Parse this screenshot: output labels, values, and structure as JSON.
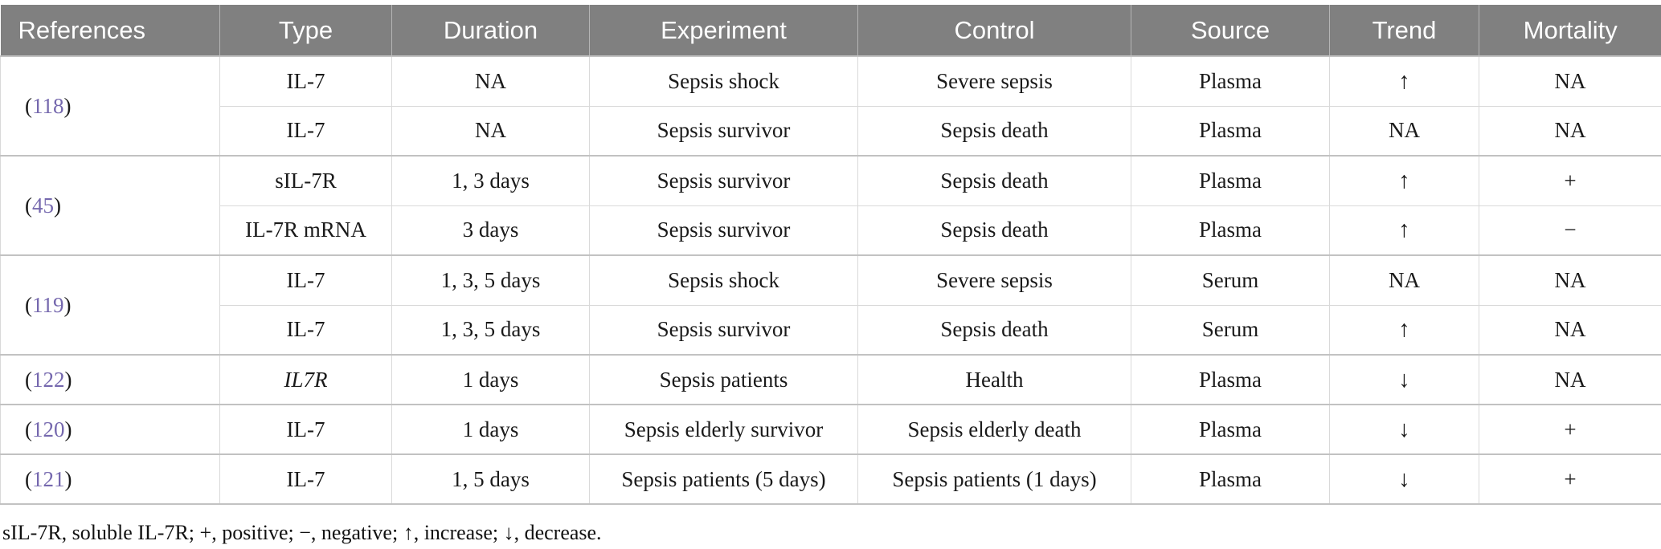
{
  "table": {
    "columns": [
      "References",
      "Type",
      "Duration",
      "Experiment",
      "Control",
      "Source",
      "Trend",
      "Mortality"
    ],
    "ref_paren_open": "(",
    "ref_paren_close": ")",
    "groups": [
      {
        "reference": "118",
        "rows": [
          {
            "type": "IL-7",
            "type_italic": false,
            "duration": "NA",
            "experiment": "Sepsis shock",
            "control": "Severe sepsis",
            "source": "Plasma",
            "trend": "↑",
            "mortality": "NA"
          },
          {
            "type": "IL-7",
            "type_italic": false,
            "duration": "NA",
            "experiment": "Sepsis survivor",
            "control": "Sepsis death",
            "source": "Plasma",
            "trend": "NA",
            "mortality": "NA"
          }
        ]
      },
      {
        "reference": "45",
        "rows": [
          {
            "type": "sIL-7R",
            "type_italic": false,
            "duration": "1, 3 days",
            "experiment": "Sepsis survivor",
            "control": "Sepsis death",
            "source": "Plasma",
            "trend": "↑",
            "mortality": "+"
          },
          {
            "type": "IL-7R mRNA",
            "type_italic": false,
            "duration": "3 days",
            "experiment": "Sepsis survivor",
            "control": "Sepsis death",
            "source": "Plasma",
            "trend": "↑",
            "mortality": "−"
          }
        ]
      },
      {
        "reference": "119",
        "rows": [
          {
            "type": "IL-7",
            "type_italic": false,
            "duration": "1, 3, 5 days",
            "experiment": "Sepsis shock",
            "control": "Severe sepsis",
            "source": "Serum",
            "trend": "NA",
            "mortality": "NA"
          },
          {
            "type": "IL-7",
            "type_italic": false,
            "duration": "1, 3, 5 days",
            "experiment": "Sepsis survivor",
            "control": "Sepsis death",
            "source": "Serum",
            "trend": "↑",
            "mortality": "NA"
          }
        ]
      },
      {
        "reference": "122",
        "rows": [
          {
            "type": "IL7R",
            "type_italic": true,
            "duration": "1 days",
            "experiment": "Sepsis patients",
            "control": "Health",
            "source": "Plasma",
            "trend": "↓",
            "mortality": "NA"
          }
        ]
      },
      {
        "reference": "120",
        "rows": [
          {
            "type": "IL-7",
            "type_italic": false,
            "duration": "1 days",
            "experiment": "Sepsis elderly survivor",
            "control": "Sepsis elderly death",
            "source": "Plasma",
            "trend": "↓",
            "mortality": "+"
          }
        ]
      },
      {
        "reference": "121",
        "rows": [
          {
            "type": "IL-7",
            "type_italic": false,
            "duration": "1, 5 days",
            "experiment": "Sepsis patients (5 days)",
            "control": "Sepsis patients (1 days)",
            "source": "Plasma",
            "trend": "↓",
            "mortality": "+"
          }
        ]
      }
    ]
  },
  "footnote": "sIL-7R, soluble IL-7R; +, positive; −, negative; ↑, increase; ↓, decrease.",
  "colors": {
    "header_bg": "#808080",
    "header_text": "#ffffff",
    "reference_link": "#7568ae",
    "border_light": "#d9d9d9",
    "border_group": "#c2c2c2",
    "body_text": "#1a1a1a",
    "page_bg": "#ffffff"
  }
}
